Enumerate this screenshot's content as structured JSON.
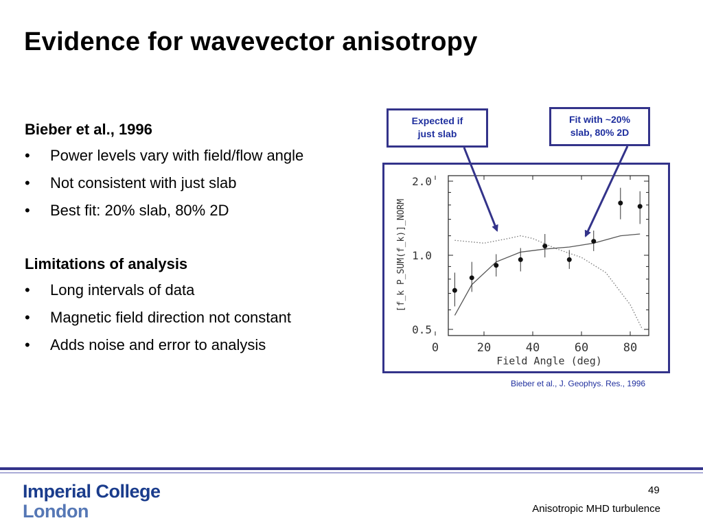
{
  "title": "Evidence for wavevector anisotropy",
  "section1": {
    "heading": "Bieber et al., 1996",
    "bullets": [
      "Power levels vary with field/flow angle",
      "Not consistent with just slab",
      "Best fit: 20% slab, 80% 2D"
    ]
  },
  "section2": {
    "heading": "Limitations of analysis",
    "bullets": [
      "Long intervals of data",
      "Magnetic field direction not constant",
      "Adds noise and error to analysis"
    ]
  },
  "callouts": {
    "expected_slab": {
      "line1": "Expected if",
      "line2": "just slab"
    },
    "fit": {
      "line1": "Fit with ~20%",
      "line2": "slab, 80% 2D"
    }
  },
  "citation": "Bieber et al., J. Geophys. Res., 1996",
  "logo": {
    "line1": "Imperial College",
    "line2": "London"
  },
  "page_number": "49",
  "footer_caption": "Anisotropic MHD turbulence",
  "colors": {
    "accent": "#33338a",
    "callout_text": "#1f2f9e",
    "logo": "#1a3c8c"
  },
  "chart_data": {
    "type": "scatter",
    "xlabel": "Field Angle (deg)",
    "ylabel": "[f_k P_SUM(f_k)]_NORM",
    "xlim": [
      0,
      88
    ],
    "ylim": [
      0.5,
      2.0
    ],
    "yscale": "log",
    "x_ticks": [
      0,
      20,
      40,
      60,
      80
    ],
    "y_ticks": [
      0.5,
      1.0,
      2.0
    ],
    "y_tick_labels": [
      "0.5",
      "1.0",
      "2.0"
    ],
    "points": [
      {
        "x": 8,
        "y": 0.72,
        "err_lo": 0.62,
        "err_hi": 0.85
      },
      {
        "x": 15,
        "y": 0.81,
        "err_lo": 0.71,
        "err_hi": 0.94
      },
      {
        "x": 25,
        "y": 0.91,
        "err_lo": 0.82,
        "err_hi": 1.01
      },
      {
        "x": 35,
        "y": 0.96,
        "err_lo": 0.86,
        "err_hi": 1.07
      },
      {
        "x": 45,
        "y": 1.09,
        "err_lo": 0.98,
        "err_hi": 1.22
      },
      {
        "x": 55,
        "y": 0.96,
        "err_lo": 0.88,
        "err_hi": 1.05
      },
      {
        "x": 65,
        "y": 1.14,
        "err_lo": 1.04,
        "err_hi": 1.26
      },
      {
        "x": 76,
        "y": 1.63,
        "err_lo": 1.4,
        "err_hi": 1.88
      },
      {
        "x": 84,
        "y": 1.58,
        "err_lo": 1.34,
        "err_hi": 1.82
      }
    ],
    "series": [
      {
        "style": "solid",
        "x": [
          8,
          15,
          25,
          35,
          45,
          55,
          65,
          76,
          84
        ],
        "y": [
          0.57,
          0.76,
          0.94,
          1.03,
          1.06,
          1.08,
          1.12,
          1.2,
          1.22
        ]
      },
      {
        "style": "dotted",
        "x": [
          8,
          20,
          30,
          35,
          40,
          50,
          60,
          70,
          80,
          85
        ],
        "y": [
          1.15,
          1.12,
          1.17,
          1.2,
          1.17,
          1.06,
          0.98,
          0.85,
          0.63,
          0.5
        ]
      }
    ]
  }
}
